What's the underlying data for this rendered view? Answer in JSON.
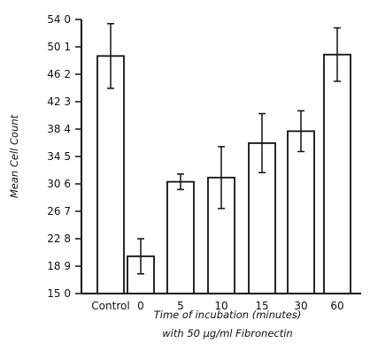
{
  "chart_data": {
    "type": "bar",
    "categories": [
      "Control",
      "0",
      "5",
      "10",
      "15",
      "30",
      "60"
    ],
    "values": [
      48.8,
      20.3,
      30.9,
      31.5,
      36.4,
      38.1,
      49.0
    ],
    "error": [
      4.6,
      2.5,
      1.1,
      4.4,
      4.2,
      2.9,
      3.8
    ],
    "yticks": [
      "15 0",
      "18 9",
      "22 8",
      "26 7",
      "30 6",
      "34 5",
      "38 4",
      "42 3",
      "46 2",
      "50 1",
      "54 0"
    ],
    "ylim": [
      15.0,
      54.0
    ],
    "ylabel": "Mean Cell Count",
    "xlabel": "Time of incubation (minutes)",
    "xlabel2": "with 50 µg/ml Fibronectin",
    "grid": false,
    "colors": {
      "bar_fill": "#ffffff",
      "bar_stroke": "#111111"
    }
  }
}
